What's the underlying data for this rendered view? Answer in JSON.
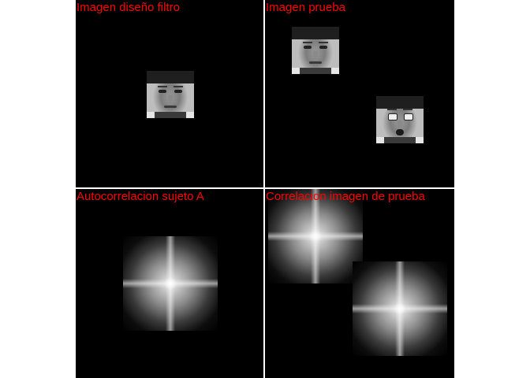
{
  "panels": {
    "top_left": {
      "title": "Imagen diseño filtro"
    },
    "top_right": {
      "title": "Imagen prueba"
    },
    "bottom_left": {
      "title": "Autocorrelacion sujeto A"
    },
    "bottom_right": {
      "title": "Correlacion imagen de prueba"
    }
  },
  "colors": {
    "title_text": "#ff0000",
    "panel_bg": "#000000",
    "page_bg": "#ffffff"
  }
}
